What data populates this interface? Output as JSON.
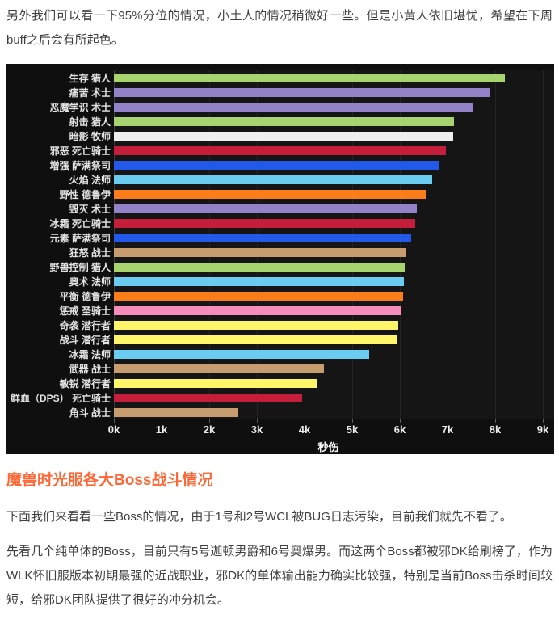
{
  "intro_paragraph": "另外我们可以看一下95%分位的情况，小土人的情况稍微好一些。但是小黄人依旧堪忧，希望在下周buff之后会有所起色。",
  "chart_data": {
    "type": "bar",
    "orientation": "horizontal",
    "title": "",
    "xlabel": "秒伤",
    "x_ticks": [
      "0k",
      "1k",
      "2k",
      "3k",
      "4k",
      "5k",
      "6k",
      "7k",
      "8k",
      "9k"
    ],
    "xlim": [
      0,
      9
    ],
    "unit_suffix": "k",
    "grid": "vertical",
    "legend": "none",
    "background": "#0f0f0f",
    "categories": [
      "生存 猎人",
      "痛苦 术士",
      "恶魔学识 术士",
      "射击 猎人",
      "暗影 牧师",
      "邪恶 死亡骑士",
      "增强 萨满祭司",
      "火焰 法师",
      "野性 德鲁伊",
      "毁灭 术士",
      "冰霜 死亡骑士",
      "元素 萨满祭司",
      "狂怒 战士",
      "野兽控制 猎人",
      "奥术 法师",
      "平衡 德鲁伊",
      "惩戒 圣骑士",
      "奇袭 潜行者",
      "战斗 潜行者",
      "冰霜 法师",
      "武器 战士",
      "敏锐 潜行者",
      "鲜血（DPS） 死亡骑士",
      "角斗 战士"
    ],
    "values": [
      8.2,
      7.9,
      7.55,
      7.14,
      7.12,
      6.96,
      6.81,
      6.68,
      6.55,
      6.36,
      6.33,
      6.24,
      6.13,
      6.1,
      6.09,
      6.07,
      6.03,
      5.97,
      5.93,
      5.36,
      4.4,
      4.25,
      3.95,
      2.61
    ],
    "colors": [
      "#a8d46f",
      "#9482c9",
      "#9482c9",
      "#a8d46f",
      "#efefef",
      "#c41e3a",
      "#2359e8",
      "#69ccf0",
      "#fb7d1a",
      "#9482c9",
      "#c41e3a",
      "#2359e8",
      "#c79c6e",
      "#a8d46f",
      "#69ccf0",
      "#fb7d1a",
      "#f58cba",
      "#fff569",
      "#fff569",
      "#69ccf0",
      "#c79c6e",
      "#fff569",
      "#c41e3a",
      "#c79c6e"
    ]
  },
  "section": {
    "heading": "魔兽时光服各大Boss战斗情况",
    "heading_color": "#ff6633",
    "paragraph1": "下面我们来看看一些Boss的情况，由于1号和2号WCL被BUG日志污染，目前我们就先不看了。",
    "paragraph2": "先看几个纯单体的Boss，目前只有5号迦顿男爵和6号奥爆男。而这两个Boss都被邪DK给刷榜了，作为WLK怀旧服版本初期最强的近战职业，邪DK的单体输出能力确实比较强，特别是当前Boss击杀时间较短，给邪DK团队提供了很好的冲分机会。"
  }
}
